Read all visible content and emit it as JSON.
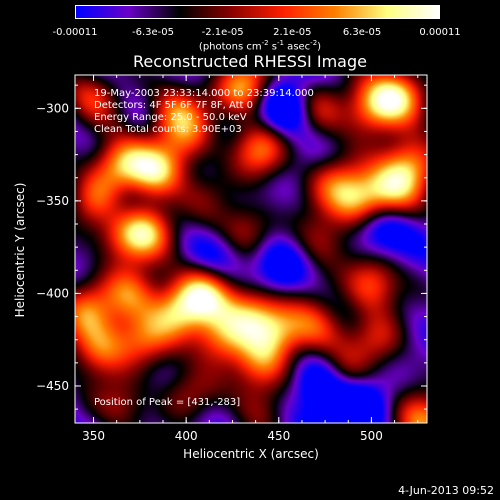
{
  "colorbar": {
    "tick_labels": [
      "-0.00011",
      "-6.3e-05",
      "-2.1e-05",
      "2.1e-05",
      "6.3e-05",
      "0.00011"
    ],
    "min": -0.00011,
    "max": 0.00011,
    "units_prefix": "(photons cm",
    "units_exp1": "-2",
    "units_mid": " s",
    "units_exp2": "-1",
    "units_mid2": " asec",
    "units_exp3": "-2",
    "units_suffix": ")"
  },
  "chart_data": {
    "type": "heatmap",
    "title": "Reconstructed RHESSI Image",
    "xlabel": "Heliocentric X (arcsec)",
    "ylabel": "Heliocentric Y (arcsec)",
    "xlim": [
      340,
      530
    ],
    "ylim": [
      -470,
      -282
    ],
    "x_ticks": [
      350,
      400,
      450,
      500
    ],
    "y_ticks": [
      -300,
      -350,
      -400,
      -450
    ],
    "colormap": [
      "#0000ff",
      "#6a00c8",
      "#000000",
      "#8b0000",
      "#ff2000",
      "#ff8000",
      "#ffff80",
      "#ffffff"
    ],
    "annotations": [
      "19-May-2003 23:33:14.000 to 23:39:14.000",
      "Detectors: 4F 5F 6F 7F 8F, Att 0",
      "Energy Range: 25.0 - 50.0 keV",
      "Clean    Total counts: 3.90E+03"
    ],
    "peak_label": "Position of Peak = [431,-283]",
    "peak_position": [
      431,
      -283
    ],
    "blobs": [
      {
        "x": 349,
        "y": -293,
        "v": 0.6
      },
      {
        "x": 352,
        "y": -350,
        "v": 0.9
      },
      {
        "x": 364,
        "y": -330,
        "v": 1.0
      },
      {
        "x": 383,
        "y": -335,
        "v": 0.95
      },
      {
        "x": 379,
        "y": -365,
        "v": 0.9
      },
      {
        "x": 365,
        "y": -370,
        "v": 0.7
      },
      {
        "x": 362,
        "y": -352,
        "v": -0.6
      },
      {
        "x": 395,
        "y": -302,
        "v": 0.8
      },
      {
        "x": 400,
        "y": -318,
        "v": 0.55
      },
      {
        "x": 431,
        "y": -288,
        "v": 1.0
      },
      {
        "x": 440,
        "y": -322,
        "v": 0.85
      },
      {
        "x": 470,
        "y": -300,
        "v": 0.6
      },
      {
        "x": 500,
        "y": -300,
        "v": 0.9
      },
      {
        "x": 515,
        "y": -292,
        "v": 1.0
      },
      {
        "x": 522,
        "y": -330,
        "v": 1.0
      },
      {
        "x": 510,
        "y": -345,
        "v": 0.85
      },
      {
        "x": 493,
        "y": -350,
        "v": 0.9
      },
      {
        "x": 480,
        "y": -340,
        "v": 0.6
      },
      {
        "x": 455,
        "y": -300,
        "v": -0.8
      },
      {
        "x": 412,
        "y": -345,
        "v": 0.3
      },
      {
        "x": 345,
        "y": -410,
        "v": 0.75
      },
      {
        "x": 353,
        "y": -430,
        "v": 0.85
      },
      {
        "x": 377,
        "y": -425,
        "v": 0.65
      },
      {
        "x": 370,
        "y": -400,
        "v": 0.8
      },
      {
        "x": 395,
        "y": -410,
        "v": 0.9
      },
      {
        "x": 410,
        "y": -400,
        "v": 0.95
      },
      {
        "x": 418,
        "y": -425,
        "v": 0.85
      },
      {
        "x": 435,
        "y": -410,
        "v": 0.9
      },
      {
        "x": 440,
        "y": -440,
        "v": 0.7
      },
      {
        "x": 450,
        "y": -420,
        "v": 0.75
      },
      {
        "x": 470,
        "y": -420,
        "v": 0.7
      },
      {
        "x": 485,
        "y": -445,
        "v": 0.65
      },
      {
        "x": 500,
        "y": -395,
        "v": 0.85
      },
      {
        "x": 505,
        "y": -425,
        "v": 0.55
      },
      {
        "x": 528,
        "y": -470,
        "v": 1.0
      },
      {
        "x": 365,
        "y": -460,
        "v": 0.5
      },
      {
        "x": 450,
        "y": -385,
        "v": -0.5
      },
      {
        "x": 420,
        "y": -380,
        "v": -0.3
      },
      {
        "x": 473,
        "y": -450,
        "v": -0.8
      },
      {
        "x": 493,
        "y": -462,
        "v": -0.7
      },
      {
        "x": 505,
        "y": -365,
        "v": -0.6
      },
      {
        "x": 472,
        "y": -372,
        "v": 0.55
      },
      {
        "x": 432,
        "y": -365,
        "v": 0.6
      },
      {
        "x": 440,
        "y": -460,
        "v": 0.4
      },
      {
        "x": 400,
        "y": -455,
        "v": 0.45
      }
    ]
  },
  "timestamp": "4-Jun-2013 09:52"
}
